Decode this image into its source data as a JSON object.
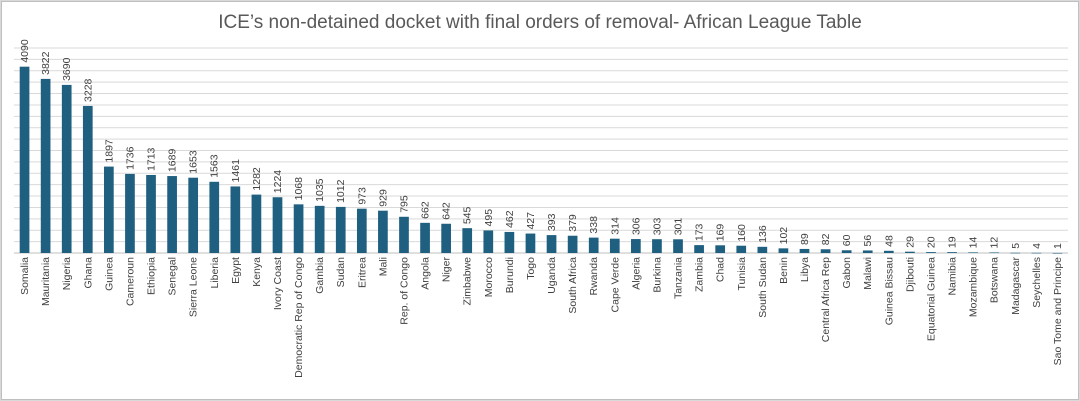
{
  "chart_data": {
    "type": "bar",
    "title": "ICE’s non-detained docket with final orders of removal- African League Table",
    "xlabel": "",
    "ylabel": "",
    "ylim": [
      0,
      4500
    ],
    "grid": true,
    "bar_color": "#1f5f80",
    "grid_color": "#d9d9d9",
    "categories": [
      "Somalia",
      "Mauritania",
      "Nigeria",
      "Ghana",
      "Guinea",
      "Cameroun",
      "Ethiopia",
      "Senegal",
      "Sierra Leone",
      "Liberia",
      "Egypt",
      "Kenya",
      "Ivory Coast",
      "Democratic Rep of Congo",
      "Gambia",
      "Sudan",
      "Eritrea",
      "Mali",
      "Rep. of Congo",
      "Angola",
      "Niger",
      "Zimbabwe",
      "Morocco",
      "Burundi",
      "Togo",
      "Uganda",
      "South Africa",
      "Rwanda",
      "Cape Verde",
      "Algeria",
      "Burkina",
      "Tanzania",
      "Zambia",
      "Chad",
      "Tunisia",
      "South Sudan",
      "Benin",
      "Libya",
      "Central Africa Rep",
      "Gabon",
      "Malawi",
      "Guinea Bissau",
      "Djibouti",
      "Equatorial Guinea",
      "Namibia",
      "Mozambique",
      "Botswana",
      "Madagascar",
      "Seychelles",
      "Sao Tome and Principe"
    ],
    "values": [
      4090,
      3822,
      3690,
      3228,
      1897,
      1736,
      1713,
      1689,
      1653,
      1563,
      1461,
      1282,
      1224,
      1068,
      1035,
      1012,
      973,
      929,
      795,
      662,
      642,
      545,
      495,
      462,
      427,
      393,
      379,
      338,
      314,
      306,
      303,
      301,
      173,
      169,
      160,
      136,
      102,
      89,
      82,
      60,
      56,
      48,
      29,
      20,
      19,
      14,
      12,
      5,
      4,
      1
    ]
  }
}
